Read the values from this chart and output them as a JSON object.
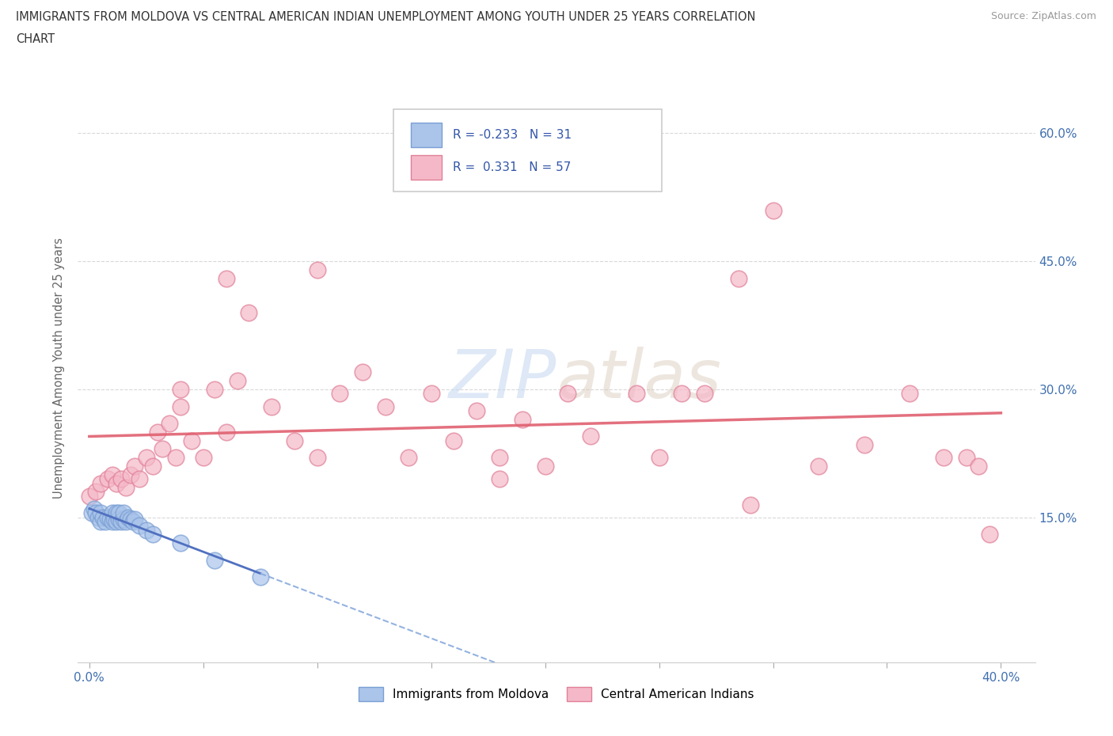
{
  "title_line1": "IMMIGRANTS FROM MOLDOVA VS CENTRAL AMERICAN INDIAN UNEMPLOYMENT AMONG YOUTH UNDER 25 YEARS CORRELATION",
  "title_line2": "CHART",
  "source": "Source: ZipAtlas.com",
  "ylabel": "Unemployment Among Youth under 25 years",
  "xlim": [
    -0.005,
    0.415
  ],
  "ylim": [
    -0.02,
    0.67
  ],
  "xticks": [
    0.0,
    0.05,
    0.1,
    0.15,
    0.2,
    0.25,
    0.3,
    0.35,
    0.4
  ],
  "ytick_positions": [
    0.15,
    0.3,
    0.45,
    0.6
  ],
  "ytick_labels": [
    "15.0%",
    "30.0%",
    "45.0%",
    "60.0%"
  ],
  "moldova_color": "#aac4ea",
  "moldova_edge": "#7a9fd4",
  "central_color": "#f5b8c8",
  "central_edge": "#e08098",
  "trend_moldova_solid_color": "#5070c0",
  "trend_moldova_dash_color": "#88aadd",
  "trend_central_color": "#e06070",
  "background_color": "#ffffff",
  "grid_color": "#d8d8d8",
  "watermark_color": "#c8daf0",
  "moldova_x": [
    0.001,
    0.002,
    0.003,
    0.004,
    0.005,
    0.005,
    0.006,
    0.007,
    0.008,
    0.009,
    0.01,
    0.01,
    0.011,
    0.012,
    0.012,
    0.013,
    0.013,
    0.014,
    0.015,
    0.015,
    0.016,
    0.017,
    0.018,
    0.019,
    0.02,
    0.022,
    0.025,
    0.028,
    0.04,
    0.055,
    0.075
  ],
  "moldova_y": [
    0.155,
    0.16,
    0.155,
    0.15,
    0.145,
    0.155,
    0.15,
    0.145,
    0.15,
    0.148,
    0.145,
    0.155,
    0.148,
    0.145,
    0.155,
    0.148,
    0.155,
    0.145,
    0.148,
    0.155,
    0.145,
    0.15,
    0.148,
    0.145,
    0.148,
    0.14,
    0.135,
    0.13,
    0.12,
    0.1,
    0.08
  ],
  "central_x": [
    0.0,
    0.003,
    0.005,
    0.008,
    0.01,
    0.012,
    0.014,
    0.016,
    0.018,
    0.02,
    0.022,
    0.025,
    0.028,
    0.03,
    0.032,
    0.035,
    0.038,
    0.04,
    0.045,
    0.05,
    0.055,
    0.06,
    0.065,
    0.07,
    0.08,
    0.09,
    0.1,
    0.11,
    0.12,
    0.13,
    0.14,
    0.15,
    0.16,
    0.17,
    0.18,
    0.19,
    0.2,
    0.21,
    0.22,
    0.24,
    0.25,
    0.26,
    0.27,
    0.285,
    0.3,
    0.32,
    0.34,
    0.36,
    0.375,
    0.385,
    0.39,
    0.395,
    0.04,
    0.06,
    0.1,
    0.18,
    0.29
  ],
  "central_y": [
    0.175,
    0.18,
    0.19,
    0.195,
    0.2,
    0.19,
    0.195,
    0.185,
    0.2,
    0.21,
    0.195,
    0.22,
    0.21,
    0.25,
    0.23,
    0.26,
    0.22,
    0.28,
    0.24,
    0.22,
    0.3,
    0.25,
    0.31,
    0.39,
    0.28,
    0.24,
    0.22,
    0.295,
    0.32,
    0.28,
    0.22,
    0.295,
    0.24,
    0.275,
    0.22,
    0.265,
    0.21,
    0.295,
    0.245,
    0.295,
    0.22,
    0.295,
    0.295,
    0.43,
    0.51,
    0.21,
    0.235,
    0.295,
    0.22,
    0.22,
    0.21,
    0.13,
    0.3,
    0.43,
    0.44,
    0.195,
    0.165
  ]
}
